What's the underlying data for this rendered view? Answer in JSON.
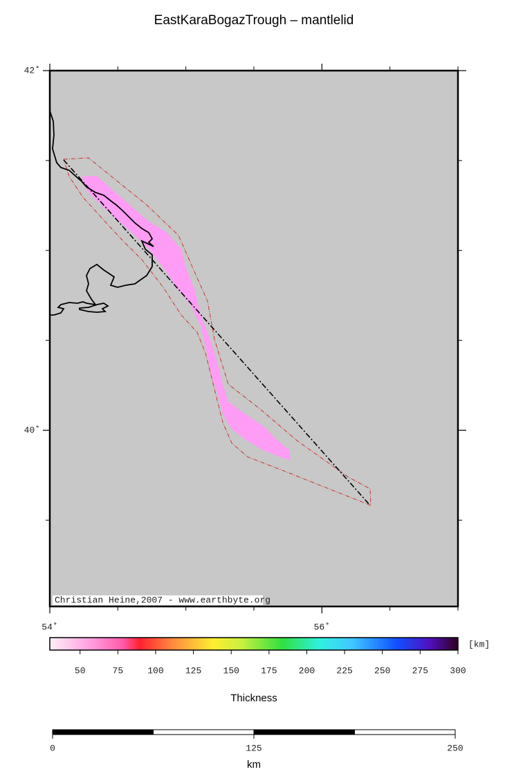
{
  "title": "EastKaraBogazTrough – mantlelid",
  "map": {
    "xlim": [
      54,
      57
    ],
    "ylim": [
      39.02,
      42
    ],
    "xticks": [
      {
        "value": 54,
        "label": "54˚"
      },
      {
        "value": 56,
        "label": "56˚"
      }
    ],
    "yticks": [
      {
        "value": 42,
        "label": "42˚"
      },
      {
        "value": 40,
        "label": "40˚"
      }
    ],
    "xminor": [
      54.5,
      55,
      55.5,
      56.5,
      57
    ],
    "yminor": [
      41.5,
      41,
      40.5,
      39.5
    ],
    "credit": "Christian Heine,2007 - www.earthbyte.org"
  },
  "colorbar": {
    "lim": [
      30,
      300
    ],
    "ticks": [
      50,
      75,
      100,
      125,
      150,
      175,
      200,
      225,
      250,
      275,
      300
    ],
    "unit": "[km]",
    "label": "Thickness"
  },
  "scalebar": {
    "lim": [
      0,
      250
    ],
    "ticks": [
      0,
      125,
      250
    ],
    "step": 62.5,
    "unit": "km"
  }
}
